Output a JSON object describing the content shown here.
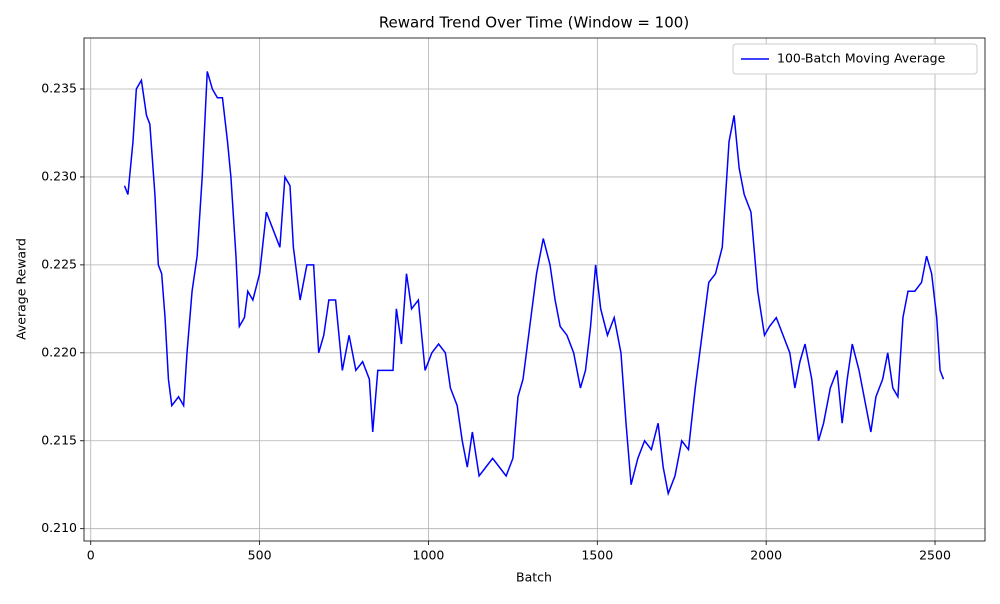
{
  "chart_data": {
    "type": "line",
    "title": "Reward Trend Over Time (Window = 100)",
    "x_label": "Batch",
    "y_label": "Average Reward",
    "x": [
      100,
      110,
      125,
      135,
      150,
      165,
      175,
      190,
      200,
      210,
      220,
      230,
      240,
      260,
      275,
      285,
      300,
      315,
      330,
      345,
      360,
      375,
      390,
      405,
      415,
      430,
      440,
      455,
      465,
      480,
      500,
      520,
      540,
      560,
      575,
      590,
      600,
      620,
      640,
      660,
      675,
      690,
      705,
      725,
      745,
      765,
      785,
      805,
      825,
      835,
      850,
      870,
      895,
      905,
      920,
      935,
      950,
      970,
      990,
      1010,
      1030,
      1050,
      1065,
      1085,
      1100,
      1115,
      1130,
      1150,
      1170,
      1190,
      1210,
      1230,
      1250,
      1265,
      1280,
      1300,
      1320,
      1340,
      1360,
      1375,
      1390,
      1410,
      1430,
      1450,
      1465,
      1480,
      1495,
      1510,
      1530,
      1550,
      1570,
      1585,
      1600,
      1620,
      1640,
      1660,
      1680,
      1695,
      1710,
      1730,
      1750,
      1770,
      1790,
      1810,
      1830,
      1850,
      1870,
      1890,
      1905,
      1920,
      1935,
      1955,
      1975,
      1995,
      2010,
      2030,
      2050,
      2070,
      2085,
      2100,
      2115,
      2135,
      2155,
      2170,
      2190,
      2210,
      2225,
      2240,
      2255,
      2275,
      2295,
      2310,
      2325,
      2345,
      2360,
      2375,
      2390,
      2405,
      2420,
      2440,
      2460,
      2475,
      2490,
      2505,
      2515,
      2525
    ],
    "series": [
      {
        "name": "100-Batch Moving Average",
        "color": "#0000ff",
        "values": [
          0.2295,
          0.229,
          0.232,
          0.235,
          0.2355,
          0.2335,
          0.233,
          0.229,
          0.225,
          0.2245,
          0.222,
          0.2185,
          0.217,
          0.2175,
          0.217,
          0.22,
          0.2235,
          0.2255,
          0.23,
          0.236,
          0.235,
          0.2345,
          0.2345,
          0.232,
          0.23,
          0.2255,
          0.2215,
          0.222,
          0.2235,
          0.223,
          0.2245,
          0.228,
          0.227,
          0.226,
          0.23,
          0.2295,
          0.226,
          0.223,
          0.225,
          0.225,
          0.22,
          0.221,
          0.223,
          0.223,
          0.219,
          0.221,
          0.219,
          0.2195,
          0.2185,
          0.2155,
          0.219,
          0.219,
          0.219,
          0.2225,
          0.2205,
          0.2245,
          0.2225,
          0.223,
          0.219,
          0.22,
          0.2205,
          0.22,
          0.218,
          0.217,
          0.215,
          0.2135,
          0.2155,
          0.213,
          0.2135,
          0.214,
          0.2135,
          0.213,
          0.214,
          0.2175,
          0.2185,
          0.2215,
          0.2245,
          0.2265,
          0.225,
          0.223,
          0.2215,
          0.221,
          0.22,
          0.218,
          0.219,
          0.2215,
          0.225,
          0.2225,
          0.221,
          0.222,
          0.22,
          0.216,
          0.2125,
          0.214,
          0.215,
          0.2145,
          0.216,
          0.2135,
          0.212,
          0.213,
          0.215,
          0.2145,
          0.218,
          0.221,
          0.224,
          0.2245,
          0.226,
          0.232,
          0.2335,
          0.2305,
          0.229,
          0.228,
          0.2235,
          0.221,
          0.2215,
          0.222,
          0.221,
          0.22,
          0.218,
          0.2195,
          0.2205,
          0.2185,
          0.215,
          0.216,
          0.218,
          0.219,
          0.216,
          0.2185,
          0.2205,
          0.219,
          0.217,
          0.2155,
          0.2175,
          0.2185,
          0.22,
          0.218,
          0.2175,
          0.222,
          0.2235,
          0.2235,
          0.224,
          0.2255,
          0.2245,
          0.222,
          0.219,
          0.2185
        ]
      }
    ],
    "xlim": [
      -20,
      2648
    ],
    "ylim": [
      0.2093,
      0.2379
    ],
    "xticks": [
      0,
      500,
      1000,
      1500,
      2000,
      2500
    ],
    "yticks": [
      {
        "value": 0.21,
        "label": "0.210"
      },
      {
        "value": 0.215,
        "label": "0.215"
      },
      {
        "value": 0.22,
        "label": "0.220"
      },
      {
        "value": 0.225,
        "label": "0.225"
      },
      {
        "value": 0.23,
        "label": "0.230"
      },
      {
        "value": 0.235,
        "label": "0.235"
      }
    ],
    "grid": true,
    "legend": "upper right"
  }
}
